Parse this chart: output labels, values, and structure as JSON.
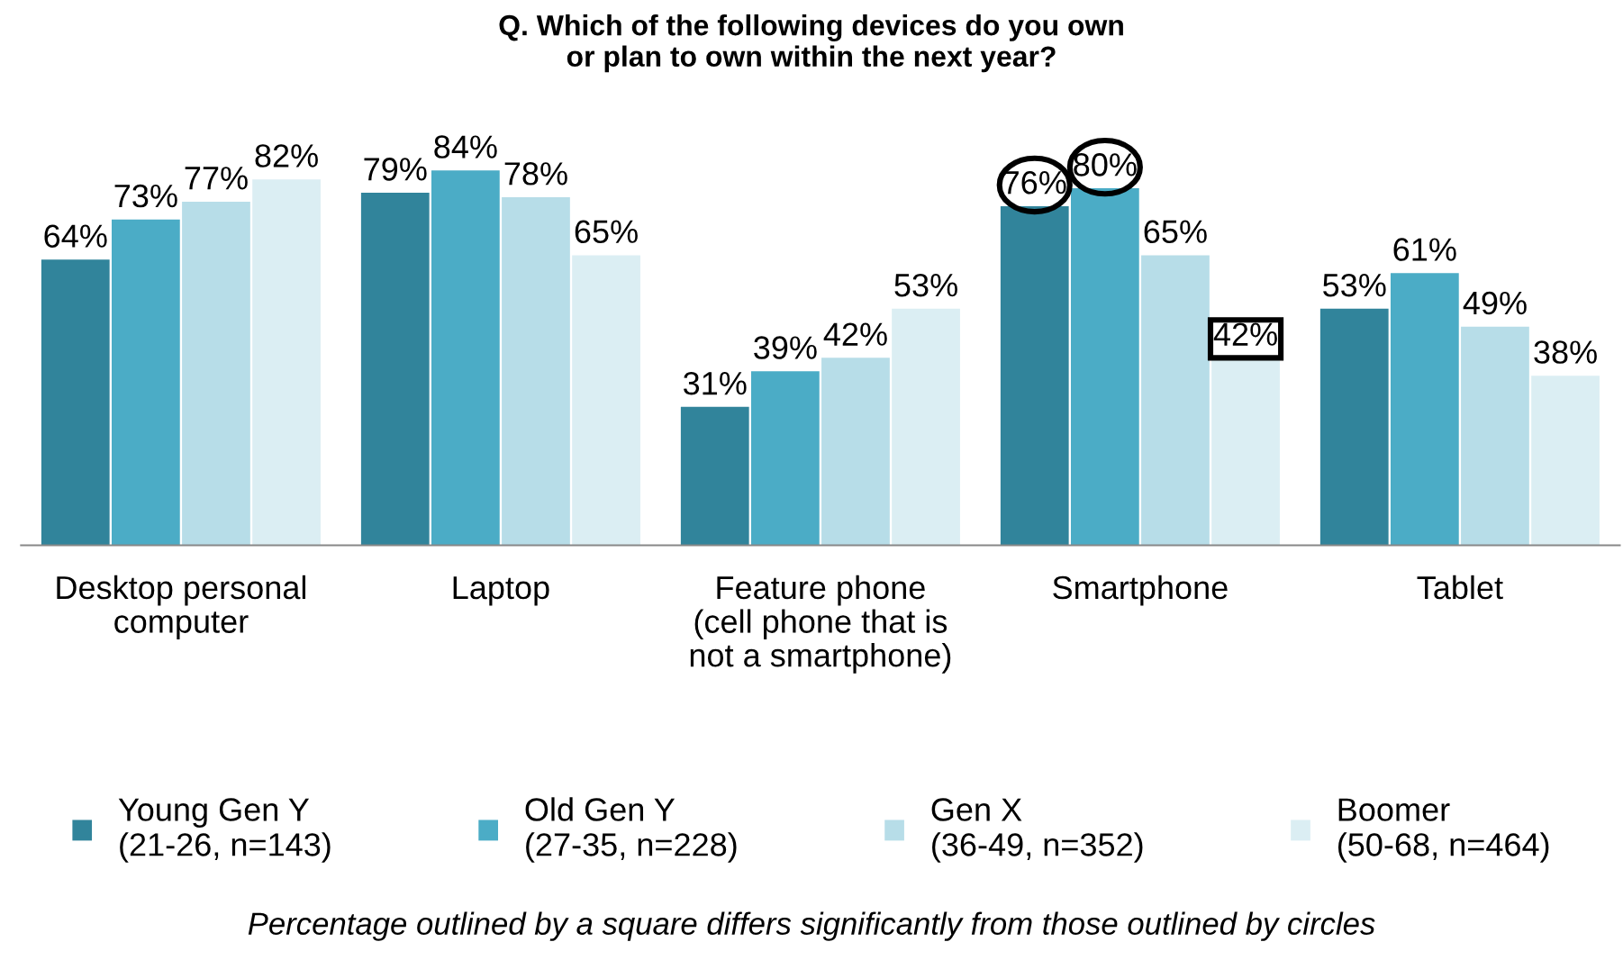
{
  "chart_data": {
    "type": "bar",
    "title": "Q. Which of the following devices do you own\nor plan to own within the next year?",
    "categories": [
      "Desktop personal\ncomputer",
      "Laptop",
      "Feature phone\n(cell phone that is\nnot a smartphone)",
      "Smartphone",
      "Tablet"
    ],
    "series": [
      {
        "name": "Young Gen Y\n(21-26, n=143)",
        "color": "#31849b",
        "values": [
          64,
          79,
          31,
          76,
          53
        ],
        "value_labels": [
          "64%",
          "79%",
          "31%",
          "76%",
          "53%"
        ]
      },
      {
        "name": "Old Gen Y\n(27-35, n=228)",
        "color": "#4bacc6",
        "values": [
          73,
          84,
          39,
          80,
          61
        ],
        "value_labels": [
          "73%",
          "84%",
          "39%",
          "80%",
          "61%"
        ]
      },
      {
        "name": "Gen X\n(36-49, n=352)",
        "color": "#b7dde8",
        "values": [
          77,
          78,
          42,
          65,
          49
        ],
        "value_labels": [
          "77%",
          "78%",
          "42%",
          "65%",
          "49%"
        ]
      },
      {
        "name": "Boomer\n(50-68, n=464)",
        "color": "#dbeef3",
        "values": [
          82,
          65,
          53,
          42,
          38
        ],
        "value_labels": [
          "82%",
          "65%",
          "53%",
          "42%",
          "38%"
        ]
      }
    ],
    "legend": "bottom",
    "grid": false,
    "annotations": [
      "Percentage outlined by a square differs significantly from those outlined by circles"
    ]
  }
}
